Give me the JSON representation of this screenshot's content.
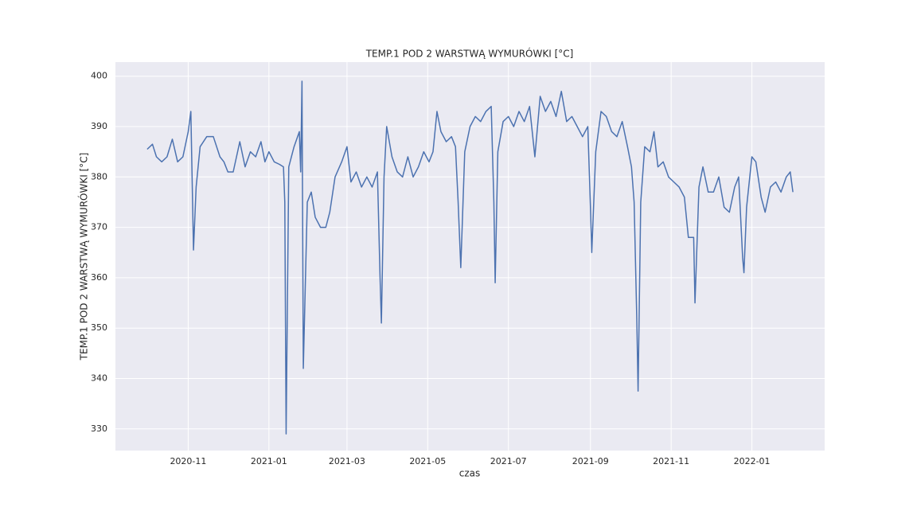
{
  "chart_data": {
    "type": "line",
    "title": "TEMP.1 POD 2 WARSTWĄ WYMURÓWKI [°C]",
    "x_label": "czas",
    "y_label": "TEMP.1 POD 2 WARSTWĄ WYMURÓWKI [°C]",
    "color": "#4c72b0",
    "grid": true,
    "x": [
      "2020-10-01",
      "2020-10-05",
      "2020-10-08",
      "2020-10-12",
      "2020-10-16",
      "2020-10-20",
      "2020-10-24",
      "2020-10-28",
      "2020-11-01",
      "2020-11-03",
      "2020-11-05",
      "2020-11-07",
      "2020-11-10",
      "2020-11-15",
      "2020-11-20",
      "2020-11-25",
      "2020-11-28",
      "2020-12-01",
      "2020-12-05",
      "2020-12-10",
      "2020-12-14",
      "2020-12-18",
      "2020-12-22",
      "2020-12-26",
      "2020-12-29",
      "2021-01-01",
      "2021-01-05",
      "2021-01-09",
      "2021-01-12",
      "2021-01-13",
      "2021-01-14",
      "2021-01-16",
      "2021-01-20",
      "2021-01-24",
      "2021-01-25",
      "2021-01-26",
      "2021-01-27",
      "2021-01-30",
      "2021-02-02",
      "2021-02-05",
      "2021-02-09",
      "2021-02-13",
      "2021-02-16",
      "2021-02-20",
      "2021-02-25",
      "2021-03-01",
      "2021-03-04",
      "2021-03-08",
      "2021-03-12",
      "2021-03-16",
      "2021-03-20",
      "2021-03-24",
      "2021-03-26",
      "2021-03-27",
      "2021-03-29",
      "2021-03-31",
      "2021-04-04",
      "2021-04-08",
      "2021-04-12",
      "2021-04-16",
      "2021-04-20",
      "2021-04-24",
      "2021-04-28",
      "2021-05-02",
      "2021-05-05",
      "2021-05-08",
      "2021-05-11",
      "2021-05-15",
      "2021-05-19",
      "2021-05-22",
      "2021-05-24",
      "2021-05-26",
      "2021-05-29",
      "2021-06-02",
      "2021-06-06",
      "2021-06-10",
      "2021-06-14",
      "2021-06-18",
      "2021-06-20",
      "2021-06-21",
      "2021-06-23",
      "2021-06-27",
      "2021-07-01",
      "2021-07-05",
      "2021-07-09",
      "2021-07-13",
      "2021-07-17",
      "2021-07-21",
      "2021-07-25",
      "2021-07-29",
      "2021-08-02",
      "2021-08-06",
      "2021-08-10",
      "2021-08-14",
      "2021-08-18",
      "2021-08-22",
      "2021-08-26",
      "2021-08-30",
      "2021-09-01",
      "2021-09-02",
      "2021-09-05",
      "2021-09-09",
      "2021-09-13",
      "2021-09-17",
      "2021-09-21",
      "2021-09-25",
      "2021-09-29",
      "2021-10-02",
      "2021-10-04",
      "2021-10-06",
      "2021-10-07",
      "2021-10-09",
      "2021-10-12",
      "2021-10-16",
      "2021-10-19",
      "2021-10-22",
      "2021-10-26",
      "2021-10-30",
      "2021-11-03",
      "2021-11-07",
      "2021-11-11",
      "2021-11-14",
      "2021-11-18",
      "2021-11-19",
      "2021-11-22",
      "2021-11-25",
      "2021-11-29",
      "2021-12-03",
      "2021-12-07",
      "2021-12-11",
      "2021-12-15",
      "2021-12-19",
      "2021-12-22",
      "2021-12-25",
      "2021-12-26",
      "2021-12-28",
      "2022-01-01",
      "2022-01-04",
      "2022-01-08",
      "2022-01-11",
      "2022-01-15",
      "2022-01-19",
      "2022-01-23",
      "2022-01-27",
      "2022-01-30",
      "2022-02-01"
    ],
    "values": [
      385.5,
      386.5,
      384,
      383,
      384,
      387.5,
      383,
      384,
      389,
      393,
      365.5,
      378,
      386,
      388,
      388,
      384,
      383,
      381,
      381,
      387,
      382,
      385,
      384,
      387,
      383,
      385,
      383,
      382.5,
      382,
      375,
      329,
      382,
      386,
      389,
      381,
      399,
      342,
      375,
      377,
      372,
      370,
      370,
      373,
      380,
      383,
      386,
      379,
      381,
      378,
      380,
      378,
      381,
      360,
      351,
      380,
      390,
      384,
      381,
      380,
      384,
      380,
      382,
      385,
      383,
      385,
      393,
      389,
      387,
      388,
      386,
      375,
      362,
      385,
      390,
      392,
      391,
      393,
      394,
      375,
      359,
      385,
      391,
      392,
      390,
      393,
      391,
      394,
      384,
      396,
      393,
      395,
      392,
      397,
      391,
      392,
      390,
      388,
      390,
      374,
      365,
      385,
      393,
      392,
      389,
      388,
      391,
      386,
      382,
      375,
      352,
      337.5,
      375,
      386,
      385,
      389,
      382,
      383,
      380,
      379,
      378,
      376,
      368,
      368,
      355,
      378,
      382,
      377,
      377,
      380,
      374,
      373,
      378,
      380,
      364,
      361,
      374,
      384,
      383,
      376,
      373,
      378,
      379,
      377,
      380,
      381,
      377
    ],
    "xlim": [
      "2020-09-07",
      "2022-02-25"
    ],
    "xticks": [
      "2020-11",
      "2021-01",
      "2021-03",
      "2021-05",
      "2021-07",
      "2021-09",
      "2021-11",
      "2022-01"
    ],
    "ylim": [
      325.7,
      402.8
    ],
    "yticks": [
      330,
      340,
      350,
      360,
      370,
      380,
      390,
      400
    ]
  }
}
